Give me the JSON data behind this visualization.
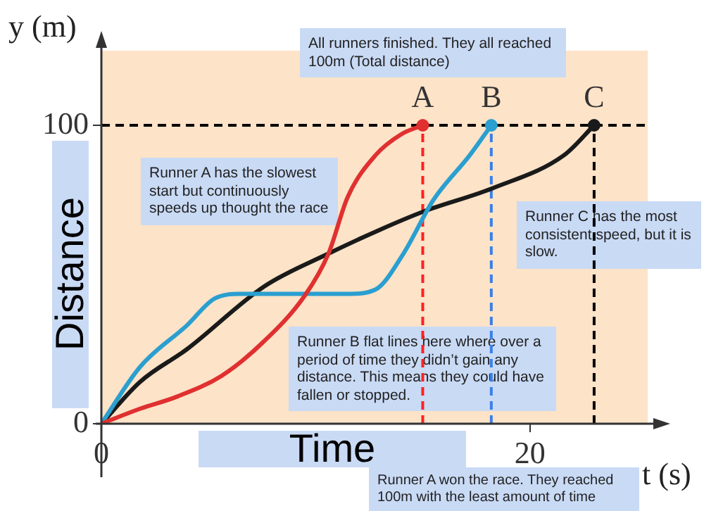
{
  "chart_data": {
    "type": "line",
    "xlabel": "Time",
    "ylabel": "Distance",
    "xlim": [
      0,
      25.5
    ],
    "ylim": [
      0,
      125
    ],
    "xticks": [
      0,
      20
    ],
    "yticks": [
      0,
      100
    ],
    "grid": false,
    "legend": false,
    "marker": "none",
    "line_style": "solid",
    "series": [
      {
        "color": "#e03030",
        "x": [
          0,
          1.8,
          3.5,
          5.6,
          7.5,
          9.5,
          10.6,
          11.5,
          12.8,
          14,
          15
        ],
        "values": [
          0,
          5,
          9,
          16,
          27,
          43,
          57,
          76,
          90,
          97,
          100
        ]
      },
      {
        "color": "#2a9fd0",
        "x": [
          0,
          1.8,
          4,
          5.3,
          6.5,
          8,
          10,
          11.5,
          12.8,
          14.1,
          15.5,
          17.2,
          18.2
        ],
        "values": [
          0,
          19,
          33,
          42,
          43.5,
          43.5,
          43.5,
          43.5,
          45,
          57,
          75,
          90,
          100
        ]
      },
      {
        "color": "#1a1a1a",
        "x": [
          0,
          1.8,
          4,
          7.6,
          10.6,
          13,
          15,
          18.3,
          21.6,
          23
        ],
        "values": [
          0,
          14,
          25,
          46,
          57,
          65,
          71,
          79,
          90,
          100
        ]
      },
      {
        "type": "scatter",
        "marker": "circle",
        "x": [
          15,
          18.2,
          23
        ],
        "values": [
          100,
          100,
          100
        ],
        "colors": [
          "#e03030",
          "#2a9fd0",
          "#1a1a1a"
        ]
      }
    ],
    "ref_lines": [
      {
        "axis": "y",
        "value": 100,
        "color": "#000000",
        "line_style": "dashed"
      },
      {
        "axis": "x",
        "value": 15,
        "color": "#ff2020",
        "line_style": "dashed"
      },
      {
        "axis": "x",
        "value": 18.2,
        "color": "#3a80e8",
        "line_style": "dashed"
      },
      {
        "axis": "x",
        "value": 23,
        "color": "#000000",
        "line_style": "dashed"
      }
    ],
    "annotations": [
      {
        "text": "A",
        "x": 15,
        "y": 100
      },
      {
        "text": "B",
        "x": 18.2,
        "y": 100
      },
      {
        "text": "C",
        "x": 23,
        "y": 100
      },
      "y (m)",
      "t (s)",
      "All runners finished. They all reached 100m (Total distance)",
      "Runner A has the slowest start but continuously speeds up thought the race",
      "Runner C has the most consistent speed, but it is slow.",
      "Runner B flat lines here where over a period of time they didn’t gain any distance. This means they could have fallen or stopped.",
      "Runner A won the race. They reached 100m with the least amount of time"
    ]
  }
}
